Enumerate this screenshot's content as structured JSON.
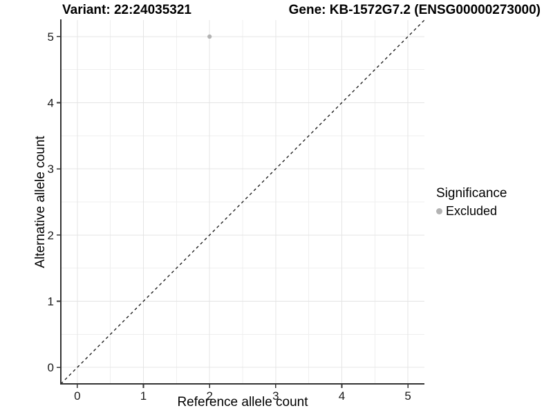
{
  "header": {
    "variant_title": "Variant: 22:24035321",
    "gene_title": "Gene: KB-1572G7.2 (ENSG00000273000)"
  },
  "chart_data": {
    "type": "scatter",
    "xlabel": "Reference allele count",
    "ylabel": "Alternative allele count",
    "xlim": [
      -0.25,
      5.25
    ],
    "ylim": [
      -0.25,
      5.25
    ],
    "xticks": [
      0,
      1,
      2,
      3,
      4,
      5
    ],
    "yticks": [
      0,
      1,
      2,
      3,
      4,
      5
    ],
    "minor_gridlines_at_half_steps": true,
    "grid": true,
    "points": [
      {
        "x": 2,
        "y": 5,
        "significance": "Excluded"
      }
    ],
    "identity_line": {
      "slope": 1,
      "intercept": 0,
      "style": "dashed"
    },
    "legend_position": "right"
  },
  "legend": {
    "title": "Significance",
    "items": [
      {
        "label": "Excluded",
        "color": "#b3b3b3"
      }
    ]
  },
  "colors": {
    "point": "#b3b3b3",
    "grid_major": "#e4e4e4",
    "grid_minor": "#efefef",
    "axis": "#333333",
    "tick_text": "#1a1a1a",
    "dashed_line": "#111111",
    "background": "#ffffff"
  }
}
